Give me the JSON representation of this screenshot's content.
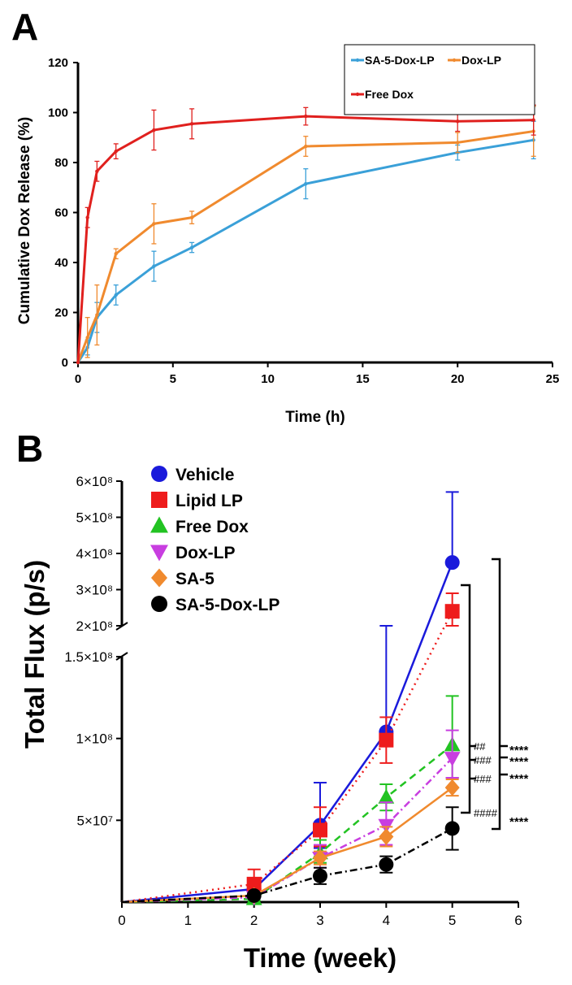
{
  "panels": {
    "a_label": "A",
    "b_label": "B"
  },
  "chart_data": [
    {
      "type": "line",
      "title": "",
      "xlabel": "Time (h)",
      "ylabel": "Cumulative  Dox Release (%)",
      "xlim": [
        0,
        25
      ],
      "ylim": [
        0,
        120
      ],
      "x_ticks": [
        0,
        5,
        10,
        15,
        20,
        25
      ],
      "y_ticks": [
        0,
        20,
        40,
        60,
        80,
        100,
        120
      ],
      "legend_position": "top-right",
      "series": [
        {
          "name": "SA-5-Dox-LP",
          "color": "#3aa0d8",
          "x": [
            0,
            0.5,
            1,
            2,
            4,
            6,
            12,
            20,
            24
          ],
          "values": [
            0,
            6,
            18,
            27,
            38.5,
            46,
            71.5,
            84,
            89
          ],
          "errors": [
            0,
            3,
            6,
            4,
            6,
            2,
            6,
            3,
            7.5
          ]
        },
        {
          "name": "Dox-LP",
          "color": "#f08a2e",
          "x": [
            0,
            0.5,
            1,
            2,
            4,
            6,
            12,
            20,
            24
          ],
          "values": [
            0,
            10,
            19,
            43.5,
            55.5,
            58,
            86.5,
            88,
            92.5
          ],
          "errors": [
            0,
            8,
            12,
            2,
            8,
            2.5,
            4,
            4,
            10
          ]
        },
        {
          "name": "Free Dox",
          "color": "#e0201e",
          "x": [
            0,
            0.5,
            1,
            2,
            4,
            6,
            12,
            20,
            24
          ],
          "values": [
            0,
            58,
            76.5,
            84.5,
            93,
            95.5,
            98.5,
            96.5,
            97
          ],
          "errors": [
            0,
            4,
            4,
            3,
            8,
            6,
            3.5,
            4,
            6
          ]
        }
      ]
    },
    {
      "type": "line",
      "title": "",
      "xlabel": "Time (week)",
      "ylabel": "Total Flux (p/s)",
      "xlim": [
        0,
        6
      ],
      "x_ticks": [
        "0",
        "1",
        "2",
        "3",
        "4",
        "5",
        "6"
      ],
      "y_ticks_lower": [
        "5×10⁷",
        "1×10⁸",
        "1.5×10⁸"
      ],
      "y_ticks_upper": [
        "2×10⁸",
        "3×10⁸",
        "4×10⁸",
        "5×10⁸",
        "6×10⁸"
      ],
      "y_axis_break": [
        150000000,
        200000000
      ],
      "legend_position": "top-left",
      "series": [
        {
          "name": "Vehicle",
          "color": "#1a1adb",
          "marker": "circle",
          "dash": "solid",
          "x": [
            0,
            2,
            3,
            4,
            5
          ],
          "values": [
            0,
            8000000,
            47000000,
            104000000,
            375000000
          ],
          "err_up": [
            0,
            1000000,
            26000000,
            63000000,
            195000000
          ],
          "err_down": [
            0,
            1000000,
            14000000,
            0,
            0
          ]
        },
        {
          "name": "Lipid LP",
          "color": "#ee1c1c",
          "marker": "square",
          "dash": "dotted",
          "x": [
            0,
            2,
            3,
            4,
            5
          ],
          "values": [
            0,
            11000000,
            44000000,
            99000000,
            240000000
          ],
          "err_up": [
            0,
            9000000,
            14000000,
            14000000,
            50000000
          ],
          "err_down": [
            0,
            7000000,
            10000000,
            14000000,
            50000000
          ]
        },
        {
          "name": "Free Dox",
          "color": "#22c322",
          "marker": "triangle-up",
          "dash": "dashed",
          "x": [
            0,
            2,
            3,
            4,
            5
          ],
          "values": [
            0,
            2000000,
            30000000,
            64000000,
            96000000
          ],
          "err_up": [
            0,
            1000000,
            8000000,
            8000000,
            30000000
          ],
          "err_down": [
            0,
            1000000,
            6000000,
            8000000,
            20000000
          ]
        },
        {
          "name": "Dox-LP",
          "color": "#c83ee0",
          "marker": "triangle-down",
          "dash": "dashdot",
          "x": [
            0,
            2,
            3,
            4,
            5
          ],
          "values": [
            0,
            3000000,
            27000000,
            47000000,
            88000000
          ],
          "err_up": [
            0,
            1000000,
            8000000,
            14000000,
            17000000
          ],
          "err_down": [
            0,
            1000000,
            6000000,
            12000000,
            12000000
          ]
        },
        {
          "name": "SA-5",
          "color": "#f08a2e",
          "marker": "diamond",
          "dash": "solid",
          "x": [
            0,
            2,
            3,
            4,
            5
          ],
          "values": [
            0,
            4000000,
            27000000,
            40000000,
            70000000
          ],
          "err_up": [
            0,
            1000000,
            4000000,
            6000000,
            5000000
          ],
          "err_down": [
            0,
            1000000,
            4000000,
            6000000,
            5000000
          ]
        },
        {
          "name": "SA-5-Dox-LP",
          "color": "#000000",
          "marker": "circle",
          "dash": "dashdot",
          "x": [
            0,
            2,
            3,
            4,
            5
          ],
          "values": [
            0,
            4000000,
            16000000,
            23000000,
            45000000
          ],
          "err_up": [
            0,
            1000000,
            5000000,
            5000000,
            13000000
          ],
          "err_down": [
            0,
            1000000,
            5000000,
            5000000,
            13000000
          ]
        }
      ],
      "annotations": {
        "hash": [
          "##",
          "###",
          "###",
          "####"
        ],
        "stars": [
          "****",
          "****",
          "****",
          "****"
        ]
      }
    }
  ]
}
